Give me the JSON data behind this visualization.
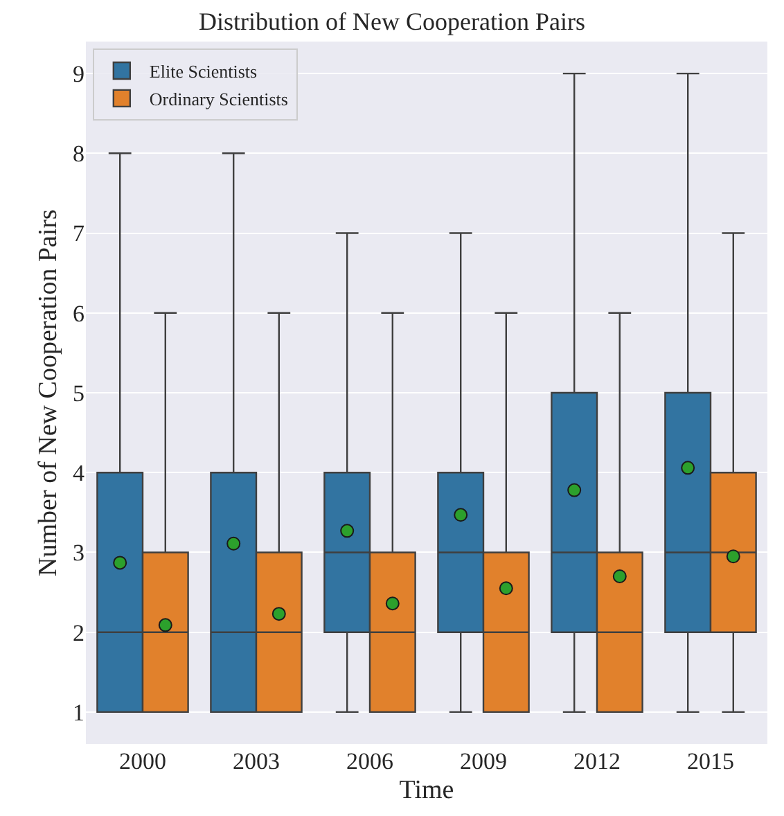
{
  "chart_data": {
    "type": "box",
    "title": "Distribution of New Cooperation Pairs",
    "xlabel": "Time",
    "ylabel": "Number of New Cooperation Pairs",
    "categories": [
      "2000",
      "2003",
      "2006",
      "2009",
      "2012",
      "2015"
    ],
    "ylim": [
      0.6,
      9.4
    ],
    "yticks": [
      1,
      2,
      3,
      4,
      5,
      6,
      7,
      8,
      9
    ],
    "grid": "y",
    "legend": "top left",
    "series": [
      {
        "name": "Elite Scientists",
        "color": "#3274a1",
        "boxes": [
          {
            "low": 1,
            "q1": 1,
            "median": 2,
            "q3": 4,
            "high": 8,
            "mean": 2.87
          },
          {
            "low": 1,
            "q1": 1,
            "median": 2,
            "q3": 4,
            "high": 8,
            "mean": 3.11
          },
          {
            "low": 1,
            "q1": 2,
            "median": 3,
            "q3": 4,
            "high": 7,
            "mean": 3.27
          },
          {
            "low": 1,
            "q1": 2,
            "median": 3,
            "q3": 4,
            "high": 7,
            "mean": 3.47
          },
          {
            "low": 1,
            "q1": 2,
            "median": 3,
            "q3": 5,
            "high": 9,
            "mean": 3.78
          },
          {
            "low": 1,
            "q1": 2,
            "median": 3,
            "q3": 5,
            "high": 9,
            "mean": 4.06
          }
        ]
      },
      {
        "name": "Ordinary Scientists",
        "color": "#e1812c",
        "boxes": [
          {
            "low": 1,
            "q1": 1,
            "median": 2,
            "q3": 3,
            "high": 6,
            "mean": 2.09
          },
          {
            "low": 1,
            "q1": 1,
            "median": 2,
            "q3": 3,
            "high": 6,
            "mean": 2.23
          },
          {
            "low": 1,
            "q1": 1,
            "median": 2,
            "q3": 3,
            "high": 6,
            "mean": 2.36
          },
          {
            "low": 1,
            "q1": 1,
            "median": 2,
            "q3": 3,
            "high": 6,
            "mean": 2.55
          },
          {
            "low": 1,
            "q1": 1,
            "median": 2,
            "q3": 3,
            "high": 6,
            "mean": 2.7
          },
          {
            "low": 1,
            "q1": 2,
            "median": 3,
            "q3": 4,
            "high": 7,
            "mean": 2.95
          }
        ]
      }
    ]
  }
}
